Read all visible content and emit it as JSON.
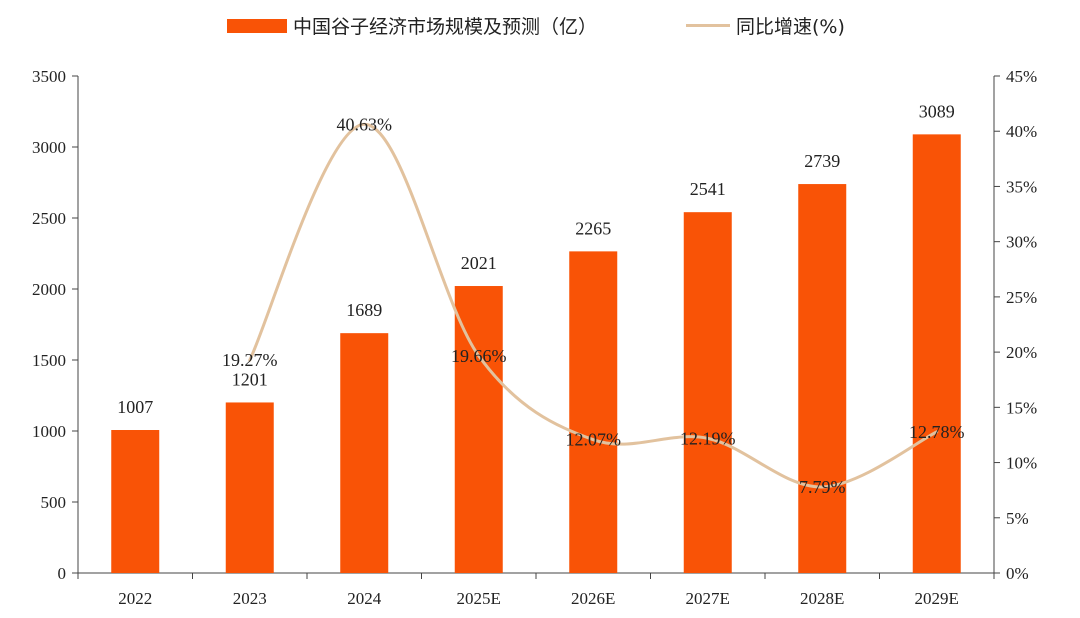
{
  "chart_data": {
    "type": "bar+line",
    "categories": [
      "2022",
      "2023",
      "2024",
      "2025E",
      "2026E",
      "2027E",
      "2028E",
      "2029E"
    ],
    "series": [
      {
        "name": "中国谷子经济市场规模及预测（亿）",
        "type": "bar",
        "axis": "left",
        "values": [
          1007,
          1201,
          1689,
          2021,
          2265,
          2541,
          2739,
          3089
        ],
        "labels": [
          "1007",
          "1201",
          "1689",
          "2021",
          "2265",
          "2541",
          "2739",
          "3089"
        ],
        "color": "#f95306"
      },
      {
        "name": "同比增速(%)",
        "type": "line",
        "axis": "right",
        "values": [
          null,
          19.27,
          40.63,
          19.66,
          12.07,
          12.19,
          7.79,
          12.78
        ],
        "labels": [
          "",
          "19.27%",
          "40.63%",
          "19.66%",
          "12.07%",
          "12.19%",
          "7.79%",
          "12.78%"
        ],
        "color": "#e2c29e"
      }
    ],
    "y_left": {
      "min": 0,
      "max": 3500,
      "ticks": [
        "0",
        "500",
        "1000",
        "1500",
        "2000",
        "2500",
        "3000",
        "3500"
      ]
    },
    "y_right": {
      "min": 0,
      "max": 45,
      "ticks": [
        "0%",
        "5%",
        "10%",
        "15%",
        "20%",
        "25%",
        "30%",
        "35%",
        "40%",
        "45%"
      ]
    },
    "legend_position": "top-center",
    "grid": false
  }
}
